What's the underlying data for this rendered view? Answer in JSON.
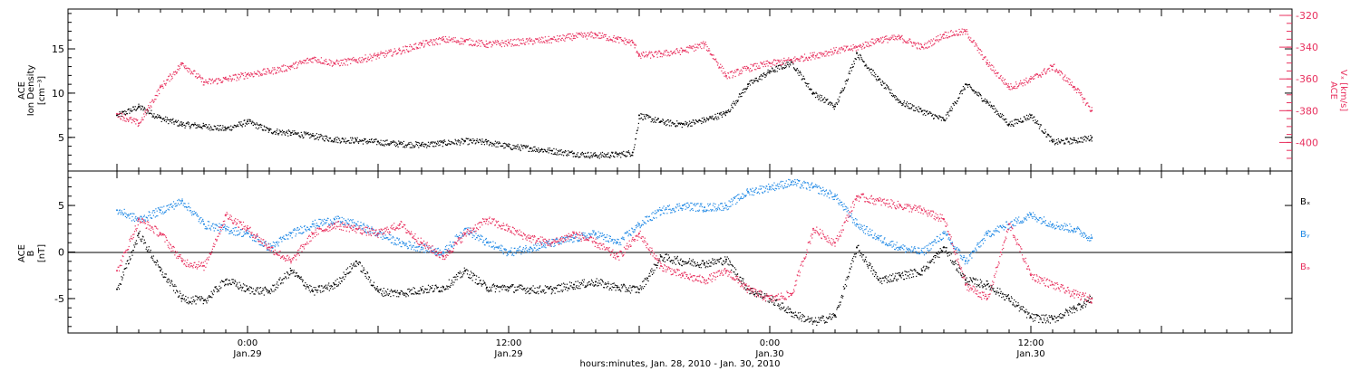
{
  "chart_data": [
    {
      "type": "scatter",
      "panel": "top",
      "ylabel_lines": [
        "ACE",
        "Ion Density",
        "[cm⁻³]"
      ],
      "y2label_lines": [
        "ACE",
        "Vₓ [km/s]"
      ],
      "ylim": [
        1.2,
        19.5
      ],
      "y_ticks": [
        5,
        10,
        15
      ],
      "y_tick_labels": [
        "5",
        "10",
        "15"
      ],
      "y2lim": [
        -418,
        -316
      ],
      "y2_ticks": [
        -400,
        -380,
        -360,
        -340,
        -320
      ],
      "y2_tick_labels": [
        "-400",
        "-380",
        "-360",
        "-340",
        "-320"
      ],
      "series": [
        {
          "axis": "left",
          "color": "#000000",
          "x": [
            -6,
            -5,
            -4,
            -3,
            -2,
            -1,
            0,
            1,
            2,
            3,
            4,
            5,
            6,
            7,
            8,
            9,
            10,
            11,
            12,
            13,
            14,
            15,
            16,
            17,
            17.7,
            18,
            19,
            20,
            21,
            22,
            23,
            24,
            25,
            26,
            27,
            28,
            29,
            30,
            31,
            32,
            33,
            34,
            35,
            36,
            37,
            38,
            38.8
          ],
          "values": [
            7.5,
            8.5,
            7.2,
            6.5,
            6.3,
            6.0,
            6.8,
            5.8,
            5.5,
            5.2,
            4.8,
            4.7,
            4.5,
            4.3,
            4.2,
            4.4,
            4.6,
            4.5,
            4.0,
            3.8,
            3.5,
            3.2,
            3.0,
            3.1,
            3.3,
            7.5,
            6.8,
            6.5,
            7.0,
            7.8,
            11.0,
            12.5,
            13.5,
            10.0,
            8.5,
            14.5,
            11.5,
            9.0,
            8.0,
            7.0,
            11.0,
            9.0,
            6.5,
            7.5,
            4.5,
            4.7,
            5.0
          ]
        },
        {
          "axis": "right",
          "color": "#e8305e",
          "x": [
            -6,
            -5,
            -4,
            -3,
            -2,
            -1,
            0,
            1,
            2,
            3,
            4,
            5,
            6,
            7,
            8,
            9,
            10,
            11,
            12,
            13,
            14,
            15,
            16,
            17,
            17.7,
            18,
            19,
            20,
            21,
            22,
            23,
            24,
            25,
            26,
            27,
            28,
            29,
            30,
            31,
            32,
            33,
            34,
            35,
            36,
            37,
            38,
            38.8
          ],
          "values": [
            -382,
            -388,
            -365,
            -350,
            -362,
            -360,
            -357,
            -355,
            -352,
            -347,
            -350,
            -348,
            -345,
            -342,
            -338,
            -335,
            -336,
            -338,
            -337,
            -336,
            -335,
            -333,
            -332,
            -335,
            -337,
            -345,
            -344,
            -342,
            -338,
            -358,
            -353,
            -350,
            -348,
            -345,
            -342,
            -340,
            -335,
            -334,
            -340,
            -332,
            -330,
            -350,
            -365,
            -360,
            -352,
            -365,
            -380
          ]
        }
      ]
    },
    {
      "type": "scatter",
      "panel": "bottom",
      "ylabel_lines": [
        "ACE",
        "B",
        "[nT]"
      ],
      "ylim": [
        -8.7,
        8.7
      ],
      "y_ticks": [
        -5,
        0,
        5
      ],
      "y_tick_labels": [
        "-5",
        "0",
        "5"
      ],
      "zero_line": true,
      "legend_position": "right",
      "series": [
        {
          "name": "Bₓ",
          "color": "#000000",
          "x": [
            -6,
            -5,
            -4,
            -3,
            -2,
            -1,
            0,
            1,
            2,
            3,
            4,
            5,
            6,
            7,
            8,
            9,
            10,
            11,
            12,
            13,
            14,
            15,
            16,
            17,
            18,
            19,
            20,
            21,
            22,
            23,
            24,
            25,
            26,
            27,
            28,
            29,
            30,
            31,
            32,
            33,
            34,
            35,
            36,
            37,
            38,
            38.8
          ],
          "values": [
            -4.0,
            2.0,
            -2.0,
            -5.0,
            -5.2,
            -3.0,
            -4.0,
            -4.2,
            -2.0,
            -4.2,
            -3.5,
            -1.0,
            -4.2,
            -4.4,
            -4.0,
            -3.8,
            -2.0,
            -3.8,
            -3.8,
            -4.0,
            -4.0,
            -3.5,
            -3.2,
            -3.8,
            -4.0,
            -0.5,
            -1.0,
            -1.2,
            -0.8,
            -4.0,
            -5.0,
            -6.5,
            -7.5,
            -6.8,
            0.5,
            -3.0,
            -2.5,
            -2.0,
            0.5,
            -3.0,
            -3.5,
            -5.0,
            -7.0,
            -7.2,
            -6.0,
            -5.0
          ]
        },
        {
          "name": "Bᵧ",
          "color": "#1e88e5",
          "x": [
            -6,
            -5,
            -4,
            -3,
            -2,
            -1,
            0,
            1,
            2,
            3,
            4,
            5,
            6,
            7,
            8,
            9,
            10,
            11,
            12,
            13,
            14,
            15,
            16,
            17,
            18,
            19,
            20,
            21,
            22,
            23,
            24,
            25,
            26,
            27,
            28,
            29,
            30,
            31,
            32,
            33,
            34,
            35,
            36,
            37,
            38,
            38.8
          ],
          "values": [
            4.5,
            3.5,
            4.5,
            5.5,
            3.0,
            2.5,
            2.0,
            0.5,
            2.0,
            3.0,
            3.5,
            3.0,
            2.0,
            1.0,
            0.5,
            0.0,
            2.5,
            1.0,
            0.0,
            0.5,
            1.0,
            1.5,
            2.0,
            1.0,
            3.0,
            4.5,
            5.0,
            4.8,
            5.0,
            6.5,
            7.0,
            7.5,
            7.0,
            6.0,
            3.0,
            1.5,
            0.5,
            0.0,
            2.0,
            -1.0,
            2.0,
            3.0,
            4.0,
            3.0,
            2.5,
            1.5
          ]
        },
        {
          "name": "Bₔ",
          "color": "#e8305e",
          "x": [
            -6,
            -5,
            -4,
            -3,
            -2,
            -1,
            0,
            1,
            2,
            3,
            4,
            5,
            6,
            7,
            8,
            9,
            10,
            11,
            12,
            13,
            14,
            15,
            16,
            17,
            18,
            19,
            20,
            21,
            22,
            23,
            24,
            25,
            26,
            27,
            28,
            29,
            30,
            31,
            32,
            33,
            34,
            35,
            36,
            37,
            38,
            38.8
          ],
          "values": [
            -2.0,
            3.5,
            2.0,
            -1.0,
            -1.5,
            4.0,
            2.5,
            0.5,
            -1.0,
            2.0,
            3.0,
            2.5,
            2.0,
            3.0,
            1.0,
            -0.5,
            2.0,
            3.5,
            2.5,
            1.5,
            1.0,
            2.0,
            1.0,
            -0.5,
            2.0,
            -1.5,
            -2.5,
            -3.0,
            -2.0,
            -4.0,
            -5.0,
            -4.5,
            2.5,
            1.0,
            6.0,
            5.5,
            5.0,
            4.5,
            3.5,
            -3.5,
            -5.0,
            3.0,
            -2.5,
            -3.5,
            -4.5,
            -5.0
          ]
        }
      ]
    }
  ],
  "x_axis": {
    "xlim": [
      -8.25,
      48.0
    ],
    "major_ticks": [
      0,
      24
    ],
    "x_tick_labels": [
      "0:00",
      "12:00",
      "0:00",
      "12:00"
    ],
    "x_tick_sublabels": [
      "Jan.29",
      "Jan.29",
      "Jan.30",
      "Jan.30"
    ],
    "xlabel": "hours:minutes, Jan. 28, 2010 - Jan. 30, 2010"
  },
  "x_tick_positions": [
    0,
    12,
    24,
    36
  ]
}
